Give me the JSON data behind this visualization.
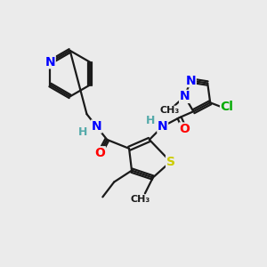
{
  "bg_color": "#ebebeb",
  "bond_color": "#1a1a1a",
  "atom_colors": {
    "N": "#0000FF",
    "O": "#FF0000",
    "S": "#cccc00",
    "Cl": "#00aa00",
    "C": "#1a1a1a",
    "H": "#55aaaa"
  },
  "figsize": [
    3.0,
    3.0
  ],
  "dpi": 100
}
